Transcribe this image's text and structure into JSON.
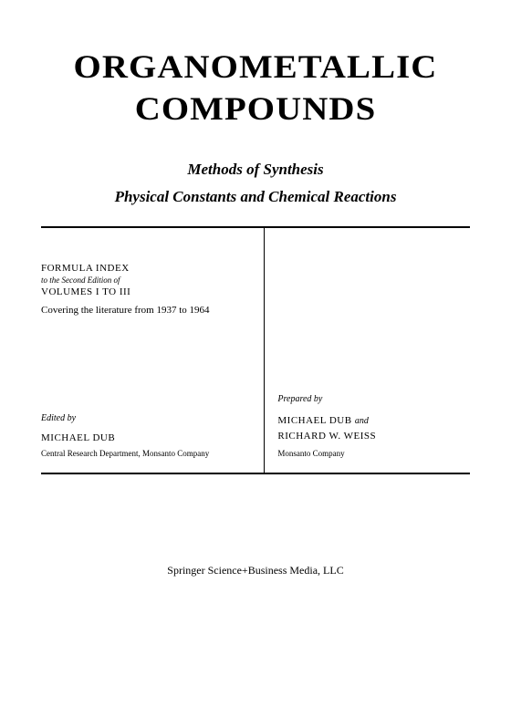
{
  "title": {
    "line1": "ORGANOMETALLIC",
    "line2": "COMPOUNDS"
  },
  "subtitle": {
    "line1": "Methods of Synthesis",
    "line2": "Physical Constants and Chemical Reactions"
  },
  "left": {
    "formula_index": "FORMULA INDEX",
    "to_edition": "to the Second Edition of",
    "volumes": "VOLUMES I TO III",
    "coverage": "Covering the literature from 1937 to 1964",
    "edited_label": "Edited by",
    "editor": "MICHAEL DUB",
    "editor_affil": "Central Research Department, Monsanto Company"
  },
  "right": {
    "prepared_label": "Prepared by",
    "preparer1": "MICHAEL DUB",
    "and": "and",
    "preparer2": "RICHARD W. WEISS",
    "preparer_affil": "Monsanto Company"
  },
  "publisher": "Springer Science+Business Media, LLC"
}
